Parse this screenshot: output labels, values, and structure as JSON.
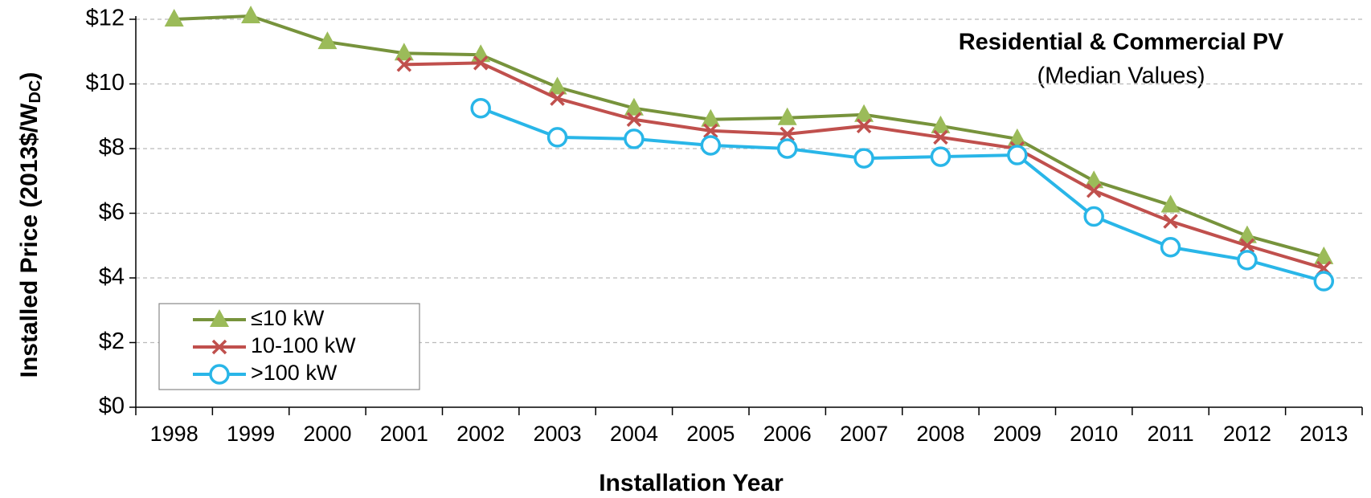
{
  "chart_data": {
    "type": "line",
    "title": "Residential & Commercial PV",
    "subtitle": "(Median Values)",
    "xlabel": "Installation Year",
    "ylabel": {
      "main": "Installed Price (2013$/W",
      "sub": "DC",
      "end": ")"
    },
    "categories": [
      "1998",
      "1999",
      "2000",
      "2001",
      "2002",
      "2003",
      "2004",
      "2005",
      "2006",
      "2007",
      "2008",
      "2009",
      "2010",
      "2011",
      "2012",
      "2013"
    ],
    "series": [
      {
        "name": "≤10 kW",
        "color": "#77933c",
        "marker_color": "#9bbb59",
        "marker": "triangle",
        "values": [
          12.0,
          12.1,
          11.3,
          10.95,
          10.9,
          9.9,
          9.25,
          8.9,
          8.95,
          9.05,
          8.7,
          8.3,
          7.0,
          6.25,
          5.3,
          4.65
        ]
      },
      {
        "name": "10-100 kW",
        "color": "#c0504d",
        "marker_color": "#c0504d",
        "marker": "x",
        "values": [
          null,
          null,
          null,
          10.6,
          10.65,
          9.55,
          8.9,
          8.55,
          8.45,
          8.7,
          8.35,
          8.0,
          6.7,
          5.75,
          5.0,
          4.3
        ]
      },
      {
        "name": ">100 kW",
        "color": "#29b6e8",
        "marker_color": "#29b6e8",
        "marker": "circle",
        "values": [
          null,
          null,
          null,
          null,
          9.25,
          8.35,
          8.3,
          8.1,
          8.0,
          7.7,
          7.75,
          7.8,
          5.9,
          4.95,
          4.55,
          3.9
        ]
      }
    ],
    "ylim": [
      0,
      12
    ],
    "yticks": [
      {
        "value": 0,
        "label": "$0"
      },
      {
        "value": 2,
        "label": "$2"
      },
      {
        "value": 4,
        "label": "$4"
      },
      {
        "value": 6,
        "label": "$6"
      },
      {
        "value": 8,
        "label": "$8"
      },
      {
        "value": 10,
        "label": "$10"
      },
      {
        "value": 12,
        "label": "$12"
      }
    ],
    "grid": true,
    "legend": "lower-left"
  }
}
